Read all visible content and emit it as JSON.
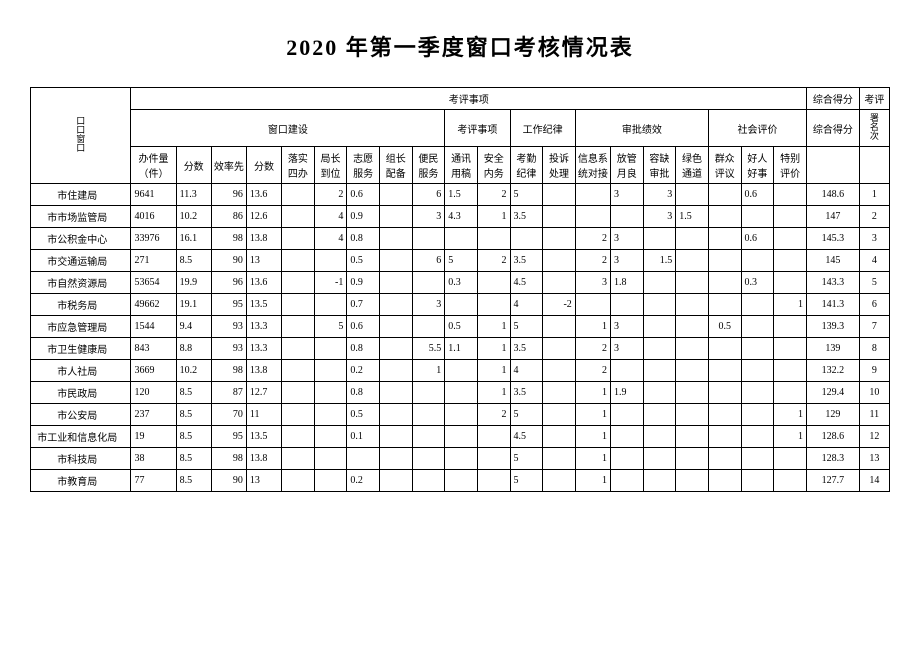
{
  "title": "2020 年第一季度窗口考核情况表",
  "header": {
    "row1": {
      "unit": "口口窗口",
      "eval": "考评事项",
      "total": "综合得分",
      "assess": "考评"
    },
    "row2": {
      "window": "窗口建设",
      "eval2": "考评事项",
      "work": "工作纪律",
      "approval": "审批绩效",
      "social": "社会评价",
      "total": "综合得分",
      "sign": "署名次"
    },
    "row3": [
      "办件量（件）",
      "分数",
      "效率先",
      "分数",
      "落实四办",
      "局长到位",
      "志愿服务",
      "组长配备",
      "便民服务",
      "通讯用稿",
      "安全内务",
      "考勤纪律",
      "投诉处理",
      "信息系统对接",
      "放管月良",
      "容缺审批",
      "绿色通道",
      "群众评议",
      "好人好事",
      "特别评价"
    ]
  },
  "rows": [
    {
      "name": "市住建局",
      "c": [
        "9641",
        "11.3",
        "96",
        "13.6",
        "",
        "2",
        "0.6",
        "",
        "6",
        "1.5",
        "2",
        "5",
        "",
        "",
        "3",
        "3",
        "",
        "",
        "0.6",
        "",
        "148.6",
        "1"
      ]
    },
    {
      "name": "市市场监管局",
      "c": [
        "4016",
        "10.2",
        "86",
        "12.6",
        "",
        "4",
        "0.9",
        "",
        "3",
        "4.3",
        "1",
        "3.5",
        "",
        "",
        "",
        "3",
        "1.5",
        "",
        "",
        "",
        "147",
        "2"
      ]
    },
    {
      "name": "市公积金中心",
      "c": [
        "33976",
        "16.1",
        "98",
        "13.8",
        "",
        "4",
        "0.8",
        "",
        "",
        "",
        "",
        "",
        "",
        "2",
        "3",
        "",
        "",
        "",
        "0.6",
        "",
        "145.3",
        "3"
      ]
    },
    {
      "name": "市交通运输局",
      "c": [
        "271",
        "8.5",
        "90",
        "13",
        "",
        "",
        "0.5",
        "",
        "6",
        "5",
        "2",
        "3.5",
        "",
        "2",
        "3",
        "1.5",
        "",
        "",
        "",
        "",
        "145",
        "4"
      ]
    },
    {
      "name": "市自然资源局",
      "c": [
        "53654",
        "19.9",
        "96",
        "13.6",
        "",
        "-1",
        "0.9",
        "",
        "",
        "0.3",
        "",
        "4.5",
        "",
        "3",
        "1.8",
        "",
        "",
        "",
        "0.3",
        "",
        "143.3",
        "5"
      ]
    },
    {
      "name": "市税务局",
      "c": [
        "49662",
        "19.1",
        "95",
        "13.5",
        "",
        "",
        "0.7",
        "",
        "3",
        "",
        "",
        "4",
        "-2",
        "",
        "",
        "",
        "",
        "",
        "",
        "1",
        "141.3",
        "6"
      ]
    },
    {
      "name": "市应急管理局",
      "c": [
        "1544",
        "9.4",
        "93",
        "13.3",
        "",
        "5",
        "0.6",
        "",
        "",
        "0.5",
        "1",
        "5",
        "",
        "1",
        "3",
        "",
        "",
        "0.5",
        "",
        "",
        "139.3",
        "7"
      ]
    },
    {
      "name": "市卫生健康局",
      "c": [
        "843",
        "8.8",
        "93",
        "13.3",
        "",
        "",
        "0.8",
        "",
        "5.5",
        "1.1",
        "1",
        "3.5",
        "",
        "2",
        "3",
        "",
        "",
        "",
        "",
        "",
        "139",
        "8"
      ]
    },
    {
      "name": "市人社局",
      "c": [
        "3669",
        "10.2",
        "98",
        "13.8",
        "",
        "",
        "0.2",
        "",
        "1",
        "",
        "1",
        "4",
        "",
        "2",
        "",
        "",
        "",
        "",
        "",
        "",
        "132.2",
        "9"
      ]
    },
    {
      "name": "市民政局",
      "c": [
        "120",
        "8.5",
        "87",
        "12.7",
        "",
        "",
        "0.8",
        "",
        "",
        "",
        "1",
        "3.5",
        "",
        "1",
        "1.9",
        "",
        "",
        "",
        "",
        "",
        "129.4",
        "10"
      ]
    },
    {
      "name": "市公安局",
      "c": [
        "237",
        "8.5",
        "70",
        "11",
        "",
        "",
        "0.5",
        "",
        "",
        "",
        "2",
        "5",
        "",
        "1",
        "",
        "",
        "",
        "",
        "",
        "1",
        "129",
        "11"
      ]
    },
    {
      "name": "市工业和信息化局",
      "c": [
        "19",
        "8.5",
        "95",
        "13.5",
        "",
        "",
        "0.1",
        "",
        "",
        "",
        "",
        "4.5",
        "",
        "1",
        "",
        "",
        "",
        "",
        "",
        "1",
        "128.6",
        "12"
      ]
    },
    {
      "name": "市科技局",
      "c": [
        "38",
        "8.5",
        "98",
        "13.8",
        "",
        "",
        "",
        "",
        "",
        "",
        "",
        "5",
        "",
        "1",
        "",
        "",
        "",
        "",
        "",
        "",
        "128.3",
        "13"
      ]
    },
    {
      "name": "市教育局",
      "c": [
        "77",
        "8.5",
        "90",
        "13",
        "",
        "",
        "0.2",
        "",
        "",
        "",
        "",
        "5",
        "",
        "1",
        "",
        "",
        "",
        "",
        "",
        "",
        "127.7",
        "14"
      ]
    }
  ]
}
